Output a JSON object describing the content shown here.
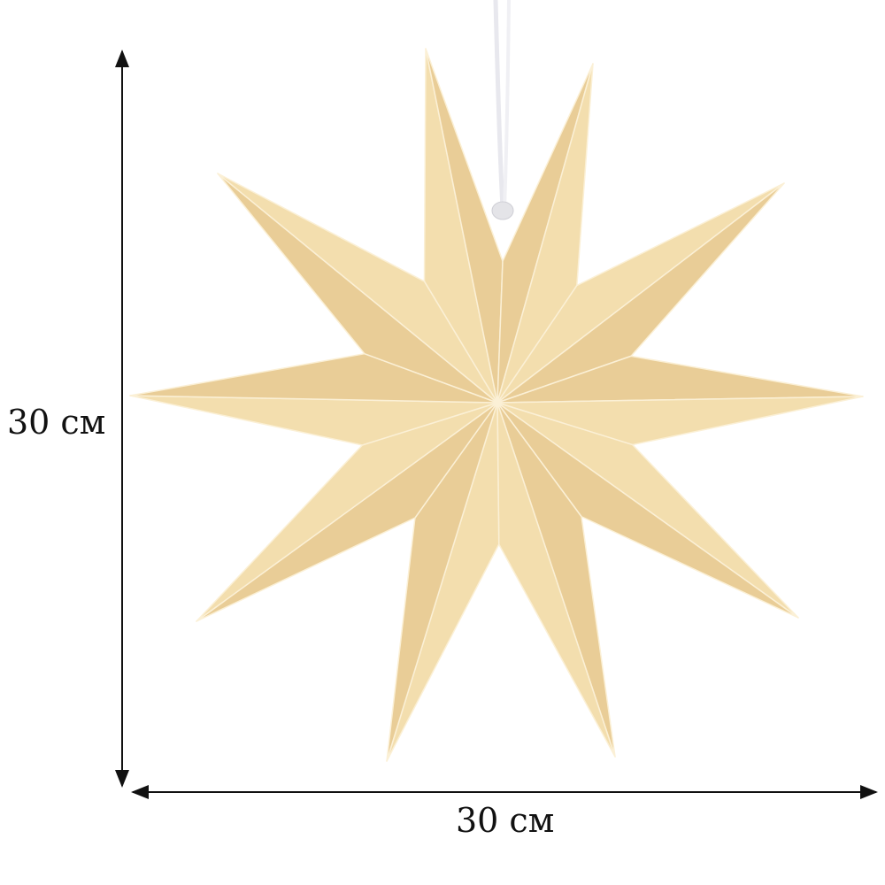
{
  "dimensions": {
    "height_label": "30 см",
    "width_label": "30 см"
  },
  "product": {
    "points": 10,
    "colors": {
      "paper_light": "#f3deae",
      "paper_dark": "#e9cd97",
      "fold_line": "#fbf0d6",
      "string": "#ffffff"
    }
  }
}
